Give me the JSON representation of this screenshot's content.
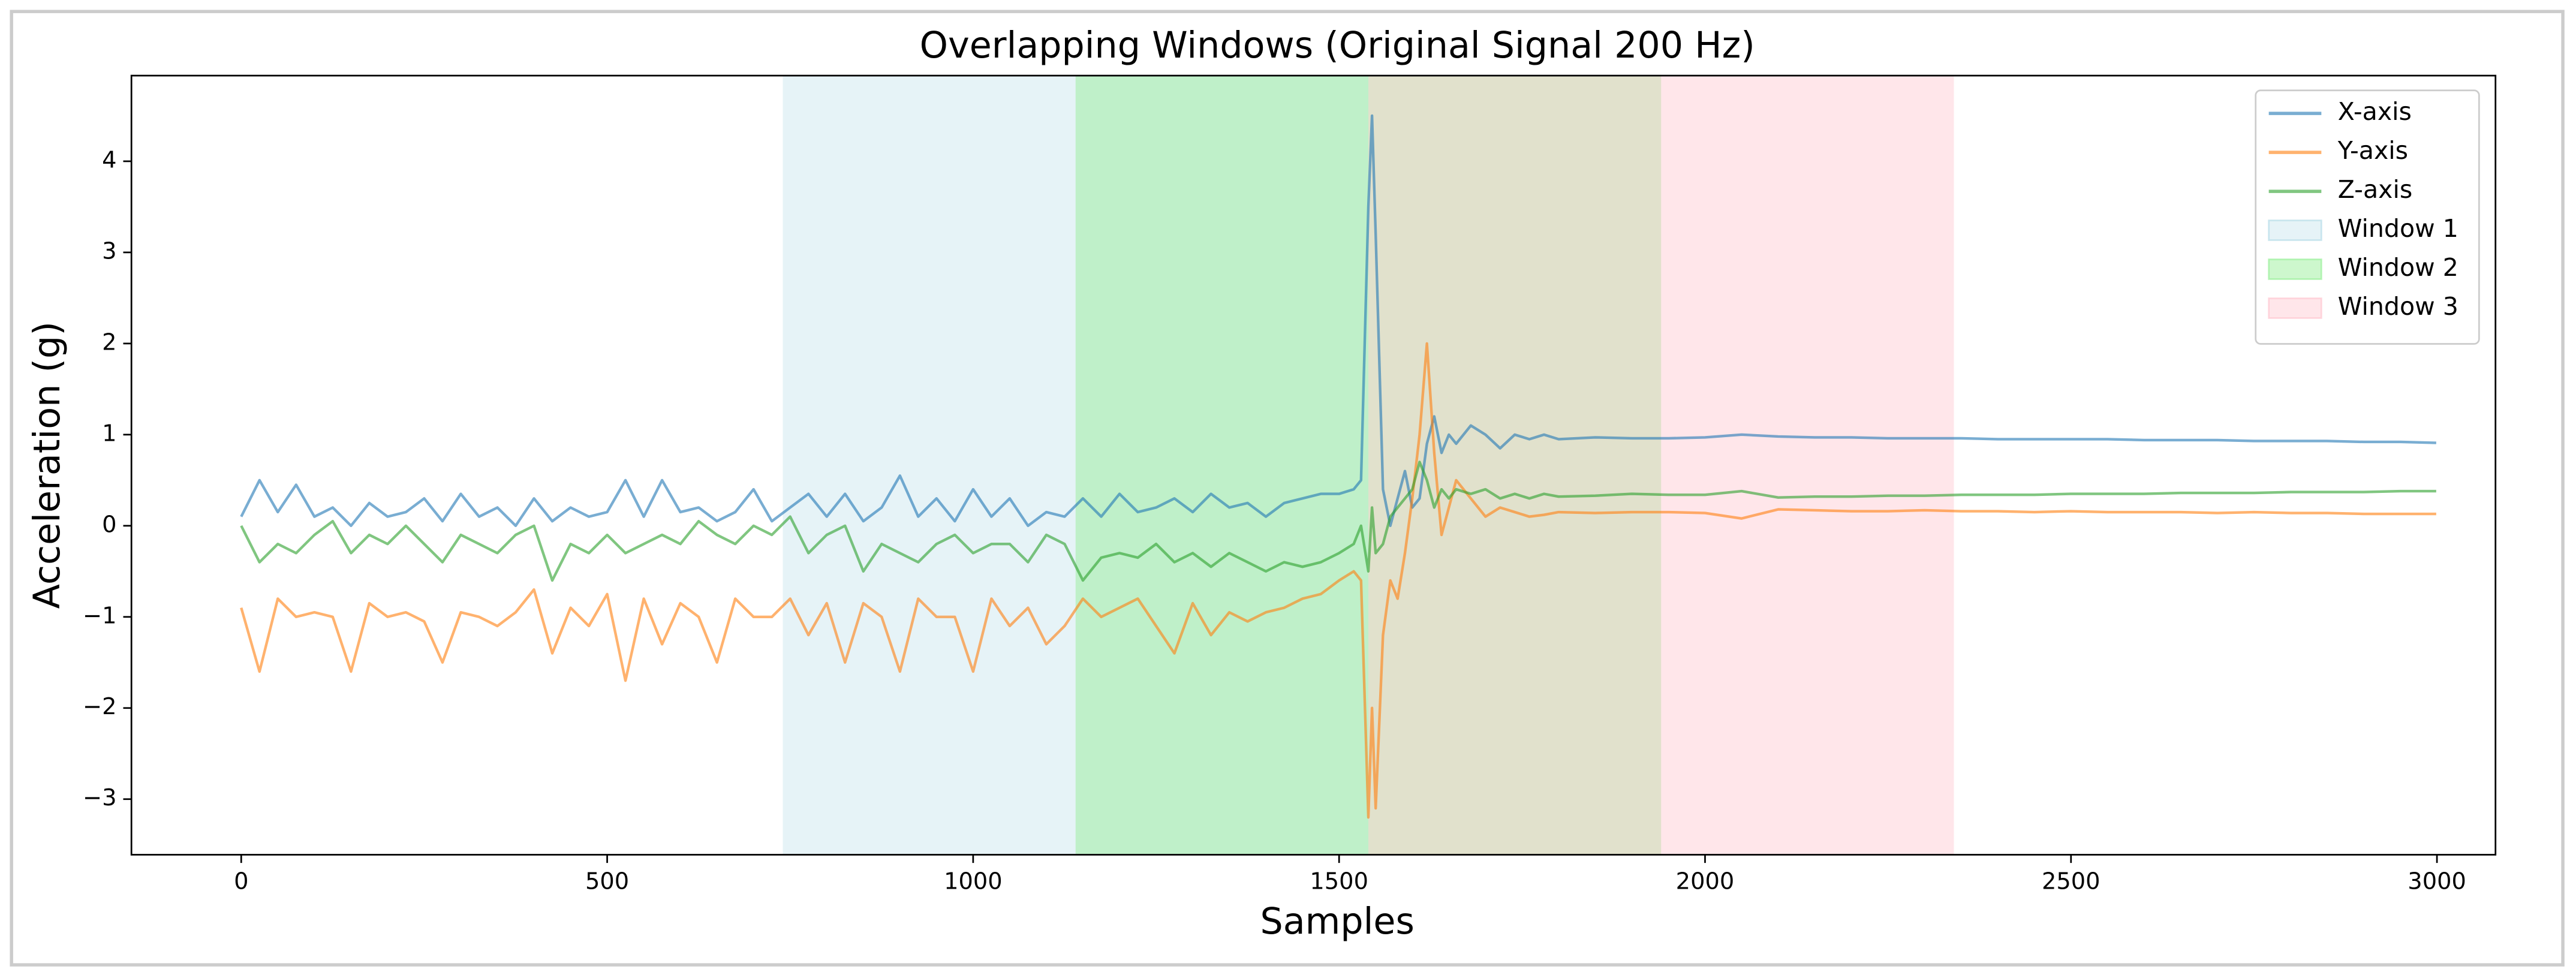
{
  "chart_data": {
    "type": "line",
    "title": "Overlapping Windows (Original Signal 200 Hz)",
    "x_label": "Samples",
    "y_label": "Acceleration (g)",
    "xlim": [
      -150,
      3080
    ],
    "ylim": [
      -3.61,
      4.94
    ],
    "xticks": [
      0,
      500,
      1000,
      1500,
      2000,
      2500,
      3000
    ],
    "yticks": [
      {
        "value": -3,
        "label": "−3"
      },
      {
        "value": -2,
        "label": "−2"
      },
      {
        "value": -1,
        "label": "−1"
      },
      0,
      1,
      2,
      3,
      4
    ],
    "legend": "upper right",
    "line_alpha": 0.6,
    "x": [
      0,
      25,
      50,
      75,
      100,
      125,
      150,
      175,
      200,
      225,
      250,
      275,
      300,
      325,
      350,
      375,
      400,
      425,
      450,
      475,
      500,
      525,
      550,
      575,
      600,
      625,
      650,
      675,
      700,
      725,
      750,
      775,
      800,
      825,
      850,
      875,
      900,
      925,
      950,
      975,
      1000,
      1025,
      1050,
      1075,
      1100,
      1125,
      1150,
      1175,
      1200,
      1225,
      1250,
      1275,
      1300,
      1325,
      1350,
      1375,
      1400,
      1425,
      1450,
      1475,
      1500,
      1520,
      1530,
      1540,
      1545,
      1550,
      1560,
      1570,
      1580,
      1590,
      1600,
      1610,
      1620,
      1630,
      1640,
      1650,
      1660,
      1680,
      1700,
      1720,
      1740,
      1760,
      1780,
      1800,
      1850,
      1900,
      1950,
      2000,
      2050,
      2100,
      2150,
      2200,
      2250,
      2300,
      2350,
      2400,
      2450,
      2500,
      2550,
      2600,
      2650,
      2700,
      2750,
      2800,
      2850,
      2900,
      2950,
      2999
    ],
    "series": [
      {
        "name": "X-axis",
        "color": "#1f77b4",
        "values": [
          0.1,
          0.5,
          0.15,
          0.45,
          0.1,
          0.2,
          0.0,
          0.25,
          0.1,
          0.15,
          0.3,
          0.05,
          0.35,
          0.1,
          0.2,
          0.0,
          0.3,
          0.05,
          0.2,
          0.1,
          0.15,
          0.5,
          0.1,
          0.5,
          0.15,
          0.2,
          0.05,
          0.15,
          0.4,
          0.05,
          0.2,
          0.35,
          0.1,
          0.35,
          0.05,
          0.2,
          0.55,
          0.1,
          0.3,
          0.05,
          0.4,
          0.1,
          0.3,
          0.0,
          0.15,
          0.1,
          0.3,
          0.1,
          0.35,
          0.15,
          0.2,
          0.3,
          0.15,
          0.35,
          0.2,
          0.25,
          0.1,
          0.25,
          0.3,
          0.35,
          0.35,
          0.4,
          0.5,
          3.5,
          4.5,
          3.2,
          0.4,
          0.0,
          0.3,
          0.6,
          0.2,
          0.3,
          0.9,
          1.2,
          0.8,
          1.0,
          0.9,
          1.1,
          1.0,
          0.85,
          1.0,
          0.95,
          1.0,
          0.95,
          0.97,
          0.96,
          0.96,
          0.97,
          1.0,
          0.98,
          0.97,
          0.97,
          0.96,
          0.96,
          0.96,
          0.95,
          0.95,
          0.95,
          0.95,
          0.94,
          0.94,
          0.94,
          0.93,
          0.93,
          0.93,
          0.92,
          0.92,
          0.91
        ]
      },
      {
        "name": "Y-axis",
        "color": "#ff7f0e",
        "values": [
          -0.9,
          -1.6,
          -0.8,
          -1.0,
          -0.95,
          -1.0,
          -1.6,
          -0.85,
          -1.0,
          -0.95,
          -1.05,
          -1.5,
          -0.95,
          -1.0,
          -1.1,
          -0.95,
          -0.7,
          -1.4,
          -0.9,
          -1.1,
          -0.75,
          -1.7,
          -0.8,
          -1.3,
          -0.85,
          -1.0,
          -1.5,
          -0.8,
          -1.0,
          -1.0,
          -0.8,
          -1.2,
          -0.85,
          -1.5,
          -0.85,
          -1.0,
          -1.6,
          -0.8,
          -1.0,
          -1.0,
          -1.6,
          -0.8,
          -1.1,
          -0.9,
          -1.3,
          -1.1,
          -0.8,
          -1.0,
          -0.9,
          -0.8,
          -1.1,
          -1.4,
          -0.85,
          -1.2,
          -0.95,
          -1.05,
          -0.95,
          -0.9,
          -0.8,
          -0.75,
          -0.6,
          -0.5,
          -0.6,
          -3.2,
          -2.0,
          -3.1,
          -1.2,
          -0.6,
          -0.8,
          -0.3,
          0.3,
          1.0,
          2.0,
          0.8,
          -0.1,
          0.2,
          0.5,
          0.3,
          0.1,
          0.2,
          0.15,
          0.1,
          0.12,
          0.15,
          0.14,
          0.15,
          0.15,
          0.14,
          0.08,
          0.18,
          0.17,
          0.16,
          0.16,
          0.17,
          0.16,
          0.16,
          0.15,
          0.16,
          0.15,
          0.15,
          0.15,
          0.14,
          0.15,
          0.14,
          0.14,
          0.13,
          0.13,
          0.13
        ]
      },
      {
        "name": "Z-axis",
        "color": "#2ca02c",
        "values": [
          0.0,
          -0.4,
          -0.2,
          -0.3,
          -0.1,
          0.05,
          -0.3,
          -0.1,
          -0.2,
          0.0,
          -0.2,
          -0.4,
          -0.1,
          -0.2,
          -0.3,
          -0.1,
          0.0,
          -0.6,
          -0.2,
          -0.3,
          -0.1,
          -0.3,
          -0.2,
          -0.1,
          -0.2,
          0.05,
          -0.1,
          -0.2,
          0.0,
          -0.1,
          0.1,
          -0.3,
          -0.1,
          0.0,
          -0.5,
          -0.2,
          -0.3,
          -0.4,
          -0.2,
          -0.1,
          -0.3,
          -0.2,
          -0.2,
          -0.4,
          -0.1,
          -0.2,
          -0.6,
          -0.35,
          -0.3,
          -0.35,
          -0.2,
          -0.4,
          -0.3,
          -0.45,
          -0.3,
          -0.4,
          -0.5,
          -0.4,
          -0.45,
          -0.4,
          -0.3,
          -0.2,
          0.0,
          -0.5,
          0.2,
          -0.3,
          -0.2,
          0.1,
          0.2,
          0.3,
          0.4,
          0.7,
          0.5,
          0.2,
          0.4,
          0.3,
          0.4,
          0.35,
          0.4,
          0.3,
          0.35,
          0.3,
          0.35,
          0.32,
          0.33,
          0.35,
          0.34,
          0.34,
          0.38,
          0.31,
          0.32,
          0.32,
          0.33,
          0.33,
          0.34,
          0.34,
          0.34,
          0.35,
          0.35,
          0.35,
          0.36,
          0.36,
          0.36,
          0.37,
          0.37,
          0.37,
          0.38,
          0.38
        ]
      }
    ],
    "windows": [
      {
        "name": "Window 1",
        "start": 740,
        "end": 1540,
        "color": "#add8e6",
        "alpha": 0.3
      },
      {
        "name": "Window 2",
        "start": 1140,
        "end": 1940,
        "color": "#90ee90",
        "alpha": 0.45
      },
      {
        "name": "Window 3",
        "start": 1540,
        "end": 2340,
        "color": "#ffc0cb",
        "alpha": 0.4
      }
    ]
  }
}
